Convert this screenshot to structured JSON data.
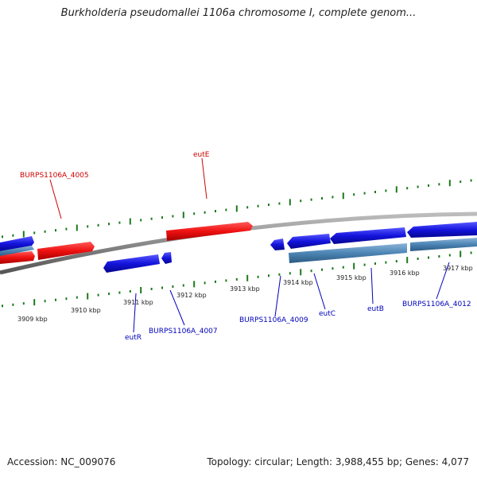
{
  "title": "Burkholderia pseudomallei 1106a chromosome I, complete genom...",
  "footer": {
    "accession_label": "Accession:",
    "accession": "NC_009076",
    "topology_label": "Topology:",
    "topology": "circular",
    "length_label": "Length:",
    "length": "3,988,455 bp",
    "genes_label": "Genes:",
    "genes": "4,077"
  },
  "colors": {
    "forward_gene": "#ee1111",
    "reverse_gene": "#1414dd",
    "reverse_gene_light": "#4c84b4",
    "backbone": "#888888",
    "tick": "#1c7a1c",
    "forward_label": "#cc0000",
    "reverse_label": "#0000bb"
  },
  "kbp_labels": [
    "3909 kbp",
    "3910 kbp",
    "3911 kbp",
    "3912 kbp",
    "3913 kbp",
    "3914 kbp",
    "3915 kbp",
    "3916 kbp",
    "3917 kbp"
  ],
  "gene_labels": {
    "BURPS1106A_4005": "BURPS1106A_4005",
    "eutE": "eutE",
    "eutR": "eutR",
    "BURPS1106A_4007": "BURPS1106A_4007",
    "BURPS1106A_4009": "BURPS1106A_4009",
    "eutC": "eutC",
    "eutB": "eutB",
    "BURPS1106A_4012": "BURPS1106A_4012"
  }
}
